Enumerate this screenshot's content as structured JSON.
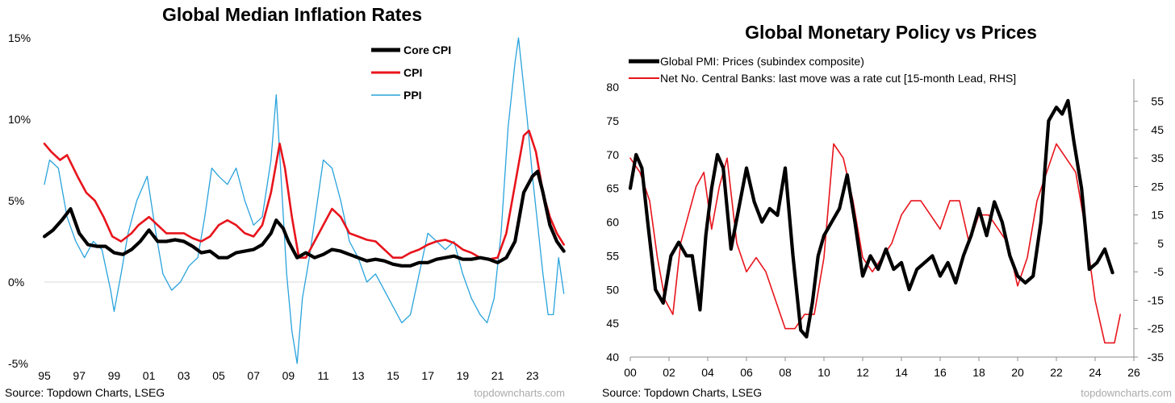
{
  "colors": {
    "black": "#000000",
    "red": "#e8141c",
    "blue": "#29a3dc",
    "grid": "#d9d9d9",
    "axis": "#8c8c8c"
  },
  "left": {
    "source": "Source: Topdown Charts, LSEG",
    "watermark": "topdowncharts.com"
  },
  "right": {
    "source": "Source: Topdown Charts, LSEG",
    "watermark": "topdowncharts.com"
  },
  "chart_data": [
    {
      "type": "line",
      "title": "Global Median Inflation Rates",
      "xlabel": "",
      "ylabel": "",
      "xlim": [
        1995.0,
        2025.0
      ],
      "ylim": [
        -5,
        15
      ],
      "x_ticks": [
        1995,
        1997,
        1999,
        2001,
        2003,
        2005,
        2007,
        2009,
        2011,
        2013,
        2015,
        2017,
        2019,
        2021,
        2023
      ],
      "x_tick_labels": [
        "95",
        "97",
        "99",
        "01",
        "03",
        "05",
        "07",
        "09",
        "11",
        "13",
        "15",
        "17",
        "19",
        "21",
        "23"
      ],
      "y_ticks": [
        -5,
        0,
        5,
        10,
        15
      ],
      "y_tick_labels": [
        "-5%",
        "0%",
        "5%",
        "10%",
        "15%"
      ],
      "legend_position": "top-right",
      "series": [
        {
          "name": "PPI",
          "color": "#29a3dc",
          "width": 1.3,
          "x": [
            1995.0,
            1995.3,
            1995.8,
            1996.3,
            1996.8,
            1997.3,
            1997.8,
            1998.3,
            1998.8,
            1999.0,
            1999.4,
            1999.8,
            2000.3,
            2000.9,
            2001.4,
            2001.8,
            2002.3,
            2002.8,
            2003.3,
            2003.8,
            2004.2,
            2004.6,
            2005.0,
            2005.5,
            2006.0,
            2006.5,
            2007.0,
            2007.5,
            2008.0,
            2008.3,
            2008.6,
            2008.9,
            2009.2,
            2009.5,
            2009.8,
            2010.2,
            2010.6,
            2011.0,
            2011.5,
            2012.0,
            2012.5,
            2013.0,
            2013.5,
            2014.0,
            2014.5,
            2015.0,
            2015.5,
            2016.0,
            2016.5,
            2017.0,
            2017.5,
            2018.0,
            2018.5,
            2019.0,
            2019.5,
            2020.0,
            2020.4,
            2020.8,
            2021.2,
            2021.6,
            2022.0,
            2022.2,
            2022.4,
            2022.7,
            2023.0,
            2023.3,
            2023.6,
            2023.9,
            2024.2,
            2024.5,
            2024.8
          ],
          "y": [
            6.0,
            7.5,
            7.0,
            4.0,
            2.5,
            1.5,
            2.5,
            2.0,
            -0.5,
            -1.8,
            0.5,
            3.0,
            5.0,
            6.5,
            3.0,
            0.5,
            -0.5,
            0.0,
            1.0,
            1.5,
            4.0,
            7.0,
            6.5,
            6.0,
            7.0,
            5.0,
            3.5,
            4.0,
            7.5,
            11.5,
            6.0,
            0.5,
            -3.0,
            -5.0,
            -1.0,
            1.5,
            4.5,
            7.5,
            7.0,
            5.0,
            2.5,
            1.5,
            0.0,
            0.5,
            -0.5,
            -1.5,
            -2.5,
            -2.0,
            0.5,
            3.0,
            2.5,
            2.0,
            2.5,
            0.5,
            -1.0,
            -2.0,
            -2.5,
            -1.0,
            3.0,
            9.5,
            13.5,
            15.0,
            13.0,
            10.0,
            6.5,
            3.5,
            0.5,
            -2.0,
            -2.0,
            1.5,
            -0.7
          ]
        },
        {
          "name": "CPI",
          "color": "#e8141c",
          "width": 2.6,
          "x": [
            1995.0,
            1995.4,
            1995.9,
            1996.3,
            1996.9,
            1997.4,
            1997.9,
            1998.4,
            1998.9,
            1999.4,
            2000.0,
            2000.4,
            2001.0,
            2001.5,
            2002.0,
            2002.5,
            2003.0,
            2003.5,
            2004.0,
            2004.5,
            2005.0,
            2005.5,
            2006.0,
            2006.5,
            2007.0,
            2007.5,
            2008.0,
            2008.5,
            2008.8,
            2009.2,
            2009.6,
            2010.0,
            2010.5,
            2011.0,
            2011.5,
            2012.0,
            2012.5,
            2013.0,
            2013.5,
            2014.0,
            2014.5,
            2015.0,
            2015.5,
            2016.0,
            2016.5,
            2017.0,
            2017.5,
            2018.0,
            2018.5,
            2019.0,
            2019.5,
            2020.0,
            2020.5,
            2021.0,
            2021.5,
            2022.0,
            2022.5,
            2022.8,
            2023.2,
            2023.6,
            2024.0,
            2024.4,
            2024.8
          ],
          "y": [
            8.5,
            8.0,
            7.5,
            7.8,
            6.5,
            5.5,
            5.0,
            4.0,
            2.8,
            2.5,
            3.0,
            3.5,
            4.0,
            3.5,
            3.0,
            3.0,
            3.0,
            2.7,
            2.5,
            2.8,
            3.5,
            3.8,
            3.5,
            3.0,
            2.8,
            3.5,
            5.5,
            8.5,
            7.0,
            4.0,
            1.5,
            1.5,
            2.5,
            3.5,
            4.5,
            4.0,
            3.0,
            2.8,
            2.6,
            2.5,
            2.0,
            1.5,
            1.5,
            1.8,
            2.0,
            2.3,
            2.5,
            2.6,
            2.4,
            2.0,
            1.8,
            1.5,
            1.4,
            1.5,
            3.0,
            6.0,
            9.0,
            9.3,
            8.0,
            5.5,
            4.0,
            3.0,
            2.3
          ]
        },
        {
          "name": "Core CPI",
          "color": "#000000",
          "width": 4.2,
          "x": [
            1995.0,
            1995.5,
            1996.0,
            1996.5,
            1997.0,
            1997.5,
            1998.0,
            1998.5,
            1999.0,
            1999.5,
            2000.0,
            2000.5,
            2001.0,
            2001.5,
            2002.0,
            2002.5,
            2003.0,
            2003.5,
            2004.0,
            2004.5,
            2005.0,
            2005.5,
            2006.0,
            2006.5,
            2007.0,
            2007.5,
            2008.0,
            2008.3,
            2008.7,
            2009.0,
            2009.5,
            2010.0,
            2010.5,
            2011.0,
            2011.5,
            2012.0,
            2012.5,
            2013.0,
            2013.5,
            2014.0,
            2014.5,
            2015.0,
            2015.5,
            2016.0,
            2016.5,
            2017.0,
            2017.5,
            2018.0,
            2018.5,
            2019.0,
            2019.5,
            2020.0,
            2020.5,
            2021.0,
            2021.5,
            2022.0,
            2022.5,
            2023.0,
            2023.3,
            2023.6,
            2024.0,
            2024.4,
            2024.8
          ],
          "y": [
            2.8,
            3.2,
            3.8,
            4.5,
            3.0,
            2.3,
            2.2,
            2.2,
            1.8,
            1.7,
            2.0,
            2.5,
            3.2,
            2.5,
            2.5,
            2.6,
            2.5,
            2.2,
            1.8,
            1.9,
            1.5,
            1.5,
            1.8,
            1.9,
            2.0,
            2.3,
            3.0,
            3.8,
            3.3,
            2.5,
            1.5,
            1.8,
            1.5,
            1.7,
            2.0,
            1.9,
            1.7,
            1.5,
            1.3,
            1.4,
            1.3,
            1.1,
            1.0,
            1.0,
            1.2,
            1.2,
            1.4,
            1.5,
            1.6,
            1.4,
            1.4,
            1.5,
            1.4,
            1.2,
            1.5,
            2.5,
            5.5,
            6.5,
            6.8,
            5.5,
            3.5,
            2.5,
            1.9
          ]
        }
      ]
    },
    {
      "type": "line",
      "title": "Global Monetary Policy vs Prices",
      "xlabel": "",
      "ylabel": "",
      "xlim": [
        2000.0,
        2026.0
      ],
      "ylim": [
        40,
        80
      ],
      "ylim_right": [
        -35,
        60
      ],
      "x_ticks": [
        2000,
        2002,
        2004,
        2006,
        2008,
        2010,
        2012,
        2014,
        2016,
        2018,
        2020,
        2022,
        2024,
        2026
      ],
      "x_tick_labels": [
        "00",
        "02",
        "04",
        "06",
        "08",
        "10",
        "12",
        "14",
        "16",
        "18",
        "20",
        "22",
        "24",
        "26"
      ],
      "y_ticks": [
        40,
        45,
        50,
        55,
        60,
        65,
        70,
        75,
        80
      ],
      "y_tick_labels": [
        "40",
        "45",
        "50",
        "55",
        "60",
        "65",
        "70",
        "75",
        "80"
      ],
      "y_ticks_right": [
        -35,
        -25,
        -15,
        -5,
        5,
        15,
        25,
        35,
        45,
        55
      ],
      "y_tick_labels_right": [
        "-35",
        "-25",
        "-15",
        "-5",
        "5",
        "15",
        "25",
        "35",
        "45",
        "55"
      ],
      "legend_position": "top-left",
      "series": [
        {
          "name": "Net No. Central Banks: last move was a rate cut  [15-month Lead, RHS]",
          "axis": "right",
          "color": "#e8141c",
          "width": 1.6,
          "x": [
            2000.0,
            2000.5,
            2001.0,
            2001.4,
            2001.8,
            2002.2,
            2002.6,
            2003.0,
            2003.4,
            2003.8,
            2004.2,
            2004.6,
            2005.0,
            2005.5,
            2006.0,
            2006.5,
            2007.0,
            2007.5,
            2008.0,
            2008.5,
            2009.0,
            2009.5,
            2010.0,
            2010.5,
            2011.0,
            2011.5,
            2012.0,
            2012.5,
            2013.0,
            2013.5,
            2014.0,
            2014.5,
            2015.0,
            2015.5,
            2016.0,
            2016.5,
            2017.0,
            2017.5,
            2018.0,
            2018.5,
            2019.0,
            2019.5,
            2020.0,
            2020.5,
            2021.0,
            2021.5,
            2022.0,
            2022.5,
            2023.0,
            2023.5,
            2024.0,
            2024.5,
            2025.0,
            2025.3
          ],
          "y": [
            35.0,
            30.0,
            20.0,
            0.0,
            -15.0,
            -20.0,
            5.0,
            15.0,
            25.0,
            30.0,
            10.0,
            25.0,
            35.0,
            5.0,
            -5.0,
            0.0,
            -5.0,
            -15.0,
            -25.0,
            -25.0,
            -20.0,
            -20.0,
            0.0,
            40.0,
            35.0,
            20.0,
            0.0,
            -5.0,
            0.0,
            5.0,
            15.0,
            20.0,
            20.0,
            15.0,
            10.0,
            20.0,
            20.0,
            5.0,
            15.0,
            15.0,
            10.0,
            5.0,
            -10.0,
            0.0,
            20.0,
            30.0,
            40.0,
            35.0,
            30.0,
            10.0,
            -15.0,
            -30.0,
            -30.0,
            -20.0
          ]
        },
        {
          "name": "Global PMI: Prices (subindex composite)",
          "axis": "left",
          "color": "#000000",
          "width": 4.2,
          "x": [
            2000.0,
            2000.3,
            2000.6,
            2000.9,
            2001.3,
            2001.7,
            2002.1,
            2002.5,
            2002.9,
            2003.2,
            2003.6,
            2003.9,
            2004.2,
            2004.5,
            2004.8,
            2005.2,
            2005.6,
            2006.0,
            2006.4,
            2006.8,
            2007.2,
            2007.6,
            2008.0,
            2008.4,
            2008.8,
            2009.1,
            2009.4,
            2009.7,
            2010.0,
            2010.4,
            2010.8,
            2011.2,
            2011.6,
            2012.0,
            2012.4,
            2012.8,
            2013.2,
            2013.6,
            2014.0,
            2014.4,
            2014.8,
            2015.2,
            2015.6,
            2016.0,
            2016.4,
            2016.8,
            2017.2,
            2017.6,
            2018.0,
            2018.4,
            2018.8,
            2019.2,
            2019.6,
            2020.0,
            2020.4,
            2020.8,
            2021.2,
            2021.6,
            2022.0,
            2022.3,
            2022.6,
            2022.9,
            2023.3,
            2023.7,
            2024.1,
            2024.5,
            2024.9
          ],
          "y": [
            65.0,
            70.0,
            68.0,
            60.0,
            50.0,
            48.0,
            55.0,
            57.0,
            55.0,
            55.0,
            47.0,
            58.0,
            65.0,
            70.0,
            68.0,
            56.0,
            62.0,
            68.0,
            63.0,
            60.0,
            62.0,
            61.0,
            68.0,
            55.0,
            44.0,
            43.0,
            48.0,
            55.0,
            58.0,
            60.0,
            62.0,
            67.0,
            60.0,
            52.0,
            55.0,
            53.0,
            56.0,
            53.0,
            54.0,
            50.0,
            53.0,
            54.0,
            55.0,
            52.0,
            54.0,
            51.0,
            55.0,
            58.0,
            62.0,
            58.0,
            63.0,
            60.0,
            55.0,
            52.0,
            51.0,
            52.0,
            60.0,
            75.0,
            77.0,
            76.0,
            78.0,
            72.0,
            65.0,
            53.0,
            54.0,
            56.0,
            52.5
          ]
        }
      ],
      "legend_order": [
        "Global PMI: Prices (subindex composite)",
        "Net No. Central Banks: last move was a rate cut  [15-month Lead, RHS]"
      ]
    }
  ]
}
